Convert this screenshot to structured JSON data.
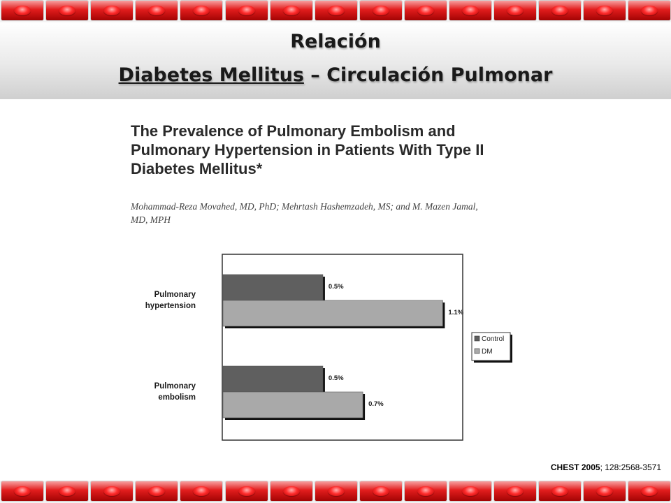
{
  "slide": {
    "title_line1": "Relación",
    "title_line2_main": "Diabetes Mellitus",
    "title_line2_rest": " – Circulación Pulmonar"
  },
  "paper": {
    "title": "The Prevalence of Pulmonary Embolism and Pulmonary Hypertension in Patients With Type II Diabetes Mellitus*",
    "authors": "Mohammad-Reza Movahed, MD, PhD; Mehrtash Hashemzadeh, MS; and M. Mazen Jamal, MD, MPH"
  },
  "citation": {
    "journal_year": "CHEST 2005",
    "rest": "; 128:2568-3571"
  },
  "colors": {
    "control": "#5f5f5f",
    "dm": "#a9a9a9",
    "accent_red": "#e21d1d"
  },
  "chart_data": {
    "type": "bar",
    "orientation": "horizontal",
    "categories": [
      {
        "line1": "Pulmonary",
        "line2": "hypertension"
      },
      {
        "line1": "Pulmonary",
        "line2": "embolism"
      }
    ],
    "series": [
      {
        "name": "Control",
        "values": [
          0.5,
          0.5
        ],
        "labels": [
          "0.5%",
          "0.5%"
        ]
      },
      {
        "name": "DM",
        "values": [
          1.1,
          0.7
        ],
        "labels": [
          "1.1%",
          "0.7%"
        ]
      }
    ],
    "unit": "%",
    "xlim": [
      0,
      1.2
    ],
    "grid": false,
    "legend_position": "right"
  }
}
